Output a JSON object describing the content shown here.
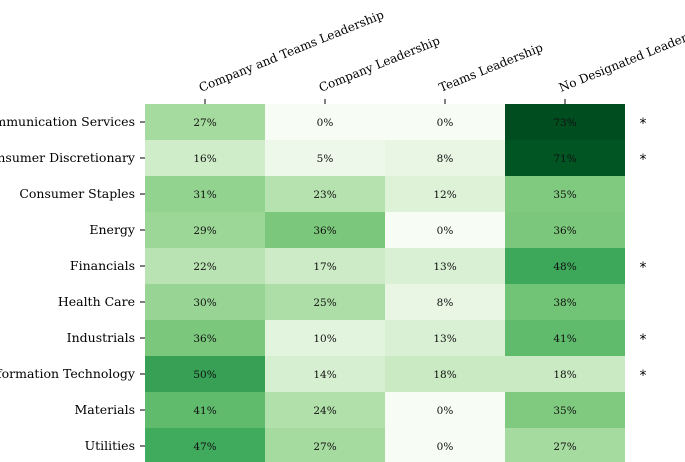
{
  "chart_data": {
    "type": "heatmap",
    "columns": [
      "Company and Teams Leadership",
      "Company Leadership",
      "Teams Leadership",
      "No Designated Leadership"
    ],
    "rows": [
      "Communication Services",
      "Consumer Discretionary",
      "Consumer Staples",
      "Energy",
      "Financials",
      "Health Care",
      "Industrials",
      "Information Technology",
      "Materials",
      "Utilities"
    ],
    "values": [
      [
        27,
        0,
        0,
        73
      ],
      [
        16,
        5,
        8,
        71
      ],
      [
        31,
        23,
        12,
        35
      ],
      [
        29,
        36,
        0,
        36
      ],
      [
        22,
        17,
        13,
        48
      ],
      [
        30,
        25,
        8,
        38
      ],
      [
        36,
        10,
        13,
        41
      ],
      [
        50,
        14,
        18,
        18
      ],
      [
        41,
        24,
        0,
        35
      ],
      [
        47,
        27,
        0,
        27
      ]
    ],
    "value_suffix": "%",
    "markers": [
      "*",
      "*",
      "",
      "",
      "*",
      "",
      "*",
      "*",
      "",
      ""
    ],
    "colormap": "Greens",
    "color_range": [
      0,
      75
    ],
    "colors": {
      "low": "#f7fcf5",
      "high": "#00441b"
    }
  }
}
